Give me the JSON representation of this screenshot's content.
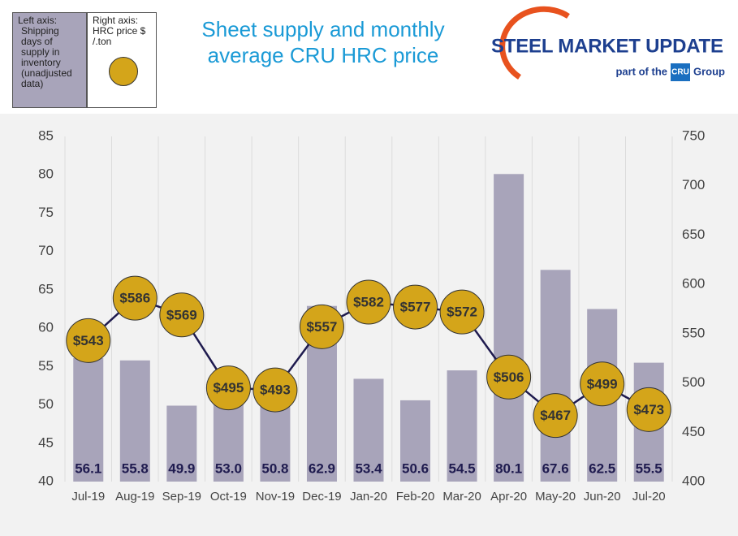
{
  "chart_data": {
    "type": "bar",
    "title": "Sheet supply and monthly average CRU HRC price",
    "categories": [
      "Jul-19",
      "Aug-19",
      "Sep-19",
      "Oct-19",
      "Nov-19",
      "Dec-19",
      "Jan-20",
      "Feb-20",
      "Mar-20",
      "Apr-20",
      "May-20",
      "Jun-20",
      "Jul-20"
    ],
    "series": [
      {
        "name": "Shipping days of supply in inventory (unadjusted data)",
        "legend_heading": "Left axis:",
        "color": "#a8a4ba",
        "values": [
          56.1,
          55.8,
          49.9,
          53.0,
          50.8,
          62.9,
          53.4,
          50.6,
          54.5,
          80.1,
          67.6,
          62.5,
          55.5
        ],
        "value_labels": [
          "56.1",
          "55.8",
          "49.9",
          "53.0",
          "50.8",
          "62.9",
          "53.4",
          "50.6",
          "54.5",
          "80.1",
          "67.6",
          "62.5",
          "55.5"
        ]
      },
      {
        "name": "HRC price $ /.ton",
        "legend_heading": "Right axis:",
        "color": "#d4a51a",
        "axis": "y2",
        "values": [
          543,
          586,
          569,
          495,
          493,
          557,
          582,
          577,
          572,
          506,
          467,
          499,
          473
        ],
        "value_labels": [
          "$543",
          "$586",
          "$569",
          "$495",
          "$493",
          "$557",
          "$582",
          "$577",
          "$572",
          "$506",
          "$467",
          "$499",
          "$473"
        ]
      }
    ],
    "ylim": [
      40,
      85
    ],
    "yticks": [
      40,
      45,
      50,
      55,
      60,
      65,
      70,
      75,
      80,
      85
    ],
    "y2lim": [
      400,
      750
    ],
    "y2ticks": [
      400,
      450,
      500,
      550,
      600,
      650,
      700,
      750
    ],
    "logo": {
      "name": "STEEL MARKET UPDATE",
      "tagline": "part of the",
      "badge": "CRU",
      "group": "Group"
    }
  }
}
